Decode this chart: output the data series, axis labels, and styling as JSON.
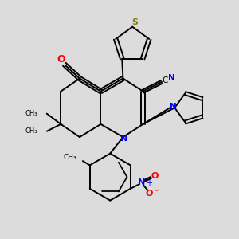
{
  "bg_color": "#dcdcdc",
  "bond_color": "#000000",
  "bond_width": 1.4,
  "N_color": "#0000ff",
  "O_color": "#ff0000",
  "S_color": "#808000",
  "figsize": [
    3.0,
    3.0
  ],
  "dpi": 100,
  "xlim": [
    0,
    10
  ],
  "ylim": [
    0,
    10
  ]
}
